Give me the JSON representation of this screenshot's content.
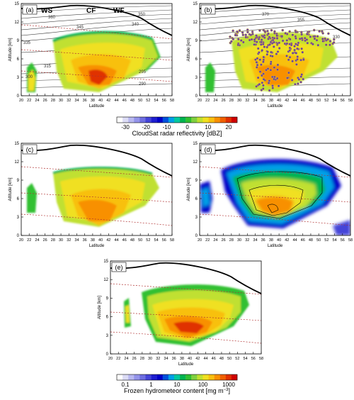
{
  "figure": {
    "panel_labels": [
      "(a)",
      "(b)",
      "(c)",
      "(d)",
      "(e)"
    ],
    "front_labels": [
      "WS",
      "CF",
      "WF"
    ],
    "colorbar_radar": {
      "ticks": [
        "-30",
        "-20",
        "-10",
        "0",
        "10",
        "20"
      ],
      "label": "CloudSat radar reflectivity [dBZ]"
    },
    "colorbar_frozen": {
      "ticks": [
        "0.1",
        "1",
        "10",
        "100",
        "1000"
      ],
      "label_main": "Frozen hydrometeor content [mg m",
      "label_sup": "−3",
      "label_close": "]"
    },
    "theta_contour_labels": [
      "360",
      "355",
      "350",
      "345",
      "340",
      "335",
      "330",
      "315",
      "300",
      "295",
      "290",
      "370"
    ]
  },
  "chart_data": [
    {
      "panel": "(a)",
      "type": "heatmap",
      "xlabel": "Latitude",
      "ylabel": "Altitude [km]",
      "x_ticks": [
        20,
        22,
        24,
        26,
        28,
        30,
        32,
        34,
        36,
        38,
        40,
        42,
        44,
        46,
        48,
        50,
        52,
        54,
        56,
        58
      ],
      "y_ticks": [
        0,
        3,
        6,
        9,
        12,
        15
      ],
      "xlim": [
        20,
        58
      ],
      "ylim": [
        0,
        15
      ],
      "variable": "CloudSat radar reflectivity (dBZ)",
      "overlays": [
        "potential temperature contours (K)",
        "tropopause (thick black)",
        "front labels WS, CF, WF"
      ]
    },
    {
      "panel": "(b)",
      "type": "heatmap",
      "xlabel": "Latitude",
      "ylabel": "Altitude [km]",
      "x_ticks": [
        20,
        22,
        24,
        26,
        28,
        30,
        32,
        34,
        36,
        38,
        40,
        42,
        44,
        46,
        48,
        50,
        52,
        54,
        56,
        58
      ],
      "y_ticks": [
        0,
        3,
        6,
        9,
        12,
        15
      ],
      "xlim": [
        20,
        58
      ],
      "ylim": [
        0,
        15
      ],
      "variable": "CloudSat radar reflectivity (dBZ) with trajectory positions",
      "overlays": [
        "potential temperature contours (K)",
        "trajectory markers (purple)"
      ]
    },
    {
      "panel": "(c)",
      "type": "heatmap",
      "xlabel": "Latitude",
      "ylabel": "Altitude [km]",
      "x_ticks": [
        20,
        22,
        24,
        26,
        28,
        30,
        32,
        34,
        36,
        38,
        40,
        42,
        44,
        46,
        48,
        50,
        52,
        54,
        56,
        58
      ],
      "y_ticks": [
        0,
        3,
        6,
        9,
        12,
        15
      ],
      "xlim": [
        20,
        58
      ],
      "ylim": [
        0,
        15
      ],
      "variable": "CloudSat radar reflectivity (dBZ)",
      "overlays": [
        "isotherm lines (dashed red)",
        "tropopause (thick black)"
      ]
    },
    {
      "panel": "(d)",
      "type": "heatmap",
      "xlabel": "Latitude",
      "ylabel": "Altitude [km]",
      "x_ticks": [
        20,
        22,
        24,
        26,
        28,
        30,
        32,
        34,
        36,
        38,
        40,
        42,
        44,
        46,
        48,
        50,
        52,
        54,
        56,
        58
      ],
      "y_ticks": [
        0,
        3,
        6,
        9,
        12,
        15
      ],
      "xlim": [
        20,
        58
      ],
      "ylim": [
        0,
        15
      ],
      "variable": "Frozen hydrometeor content (mg m-3)",
      "overlays": [
        "contours (black)",
        "isotherm lines (dashed red)"
      ]
    },
    {
      "panel": "(e)",
      "type": "heatmap",
      "xlabel": "Latitude",
      "ylabel": "Altitude [km]",
      "x_ticks": [
        20,
        22,
        24,
        26,
        28,
        30,
        32,
        34,
        36,
        38,
        40,
        42,
        44,
        46,
        48,
        50,
        52,
        54,
        56,
        58
      ],
      "y_ticks": [
        0,
        3,
        6,
        9,
        12,
        15
      ],
      "xlim": [
        20,
        58
      ],
      "ylim": [
        0,
        15
      ],
      "variable": "Frozen hydrometeor content (mg m-3)",
      "overlays": [
        "isotherm lines (dashed red)",
        "tropopause (thick black)"
      ]
    }
  ],
  "colors": {
    "radar_scale": [
      "#ffffff",
      "#dcdcf5",
      "#b8b8f0",
      "#9494ea",
      "#6e6ee0",
      "#4444d8",
      "#1e1ed0",
      "#0000c8",
      "#0050dc",
      "#00a0e6",
      "#00c8a0",
      "#00b450",
      "#30c030",
      "#80d040",
      "#c0e030",
      "#f0e020",
      "#f8c010",
      "#f89000",
      "#f06000",
      "#e03000",
      "#d00000"
    ],
    "frozen_scale": [
      "#ffffff",
      "#dcdcf5",
      "#b8b8f0",
      "#9494ea",
      "#6e6ee0",
      "#4444d8",
      "#1e1ed0",
      "#0000c8",
      "#0050dc",
      "#00a0e6",
      "#00c8a0",
      "#00b450",
      "#30c030",
      "#80d040",
      "#c0e030",
      "#f0e020",
      "#f8c010",
      "#f89000",
      "#f06000",
      "#e03000",
      "#d00000"
    ],
    "isotherm": "#b03030",
    "trajectory": "#6a3fa0"
  }
}
